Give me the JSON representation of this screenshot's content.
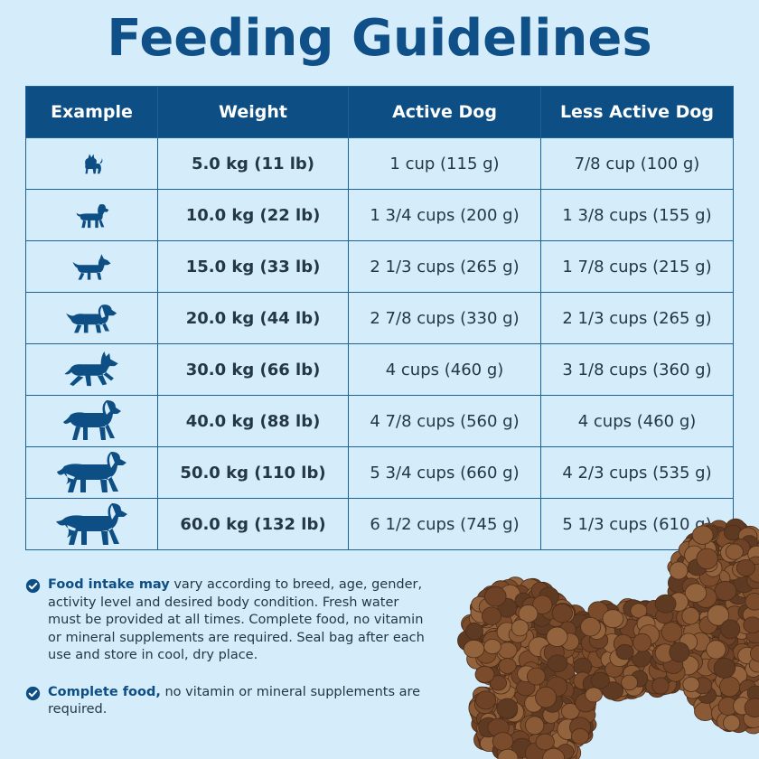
{
  "title": "Feeding Guidelines",
  "table": {
    "headers": [
      "Example",
      "Weight",
      "Active Dog",
      "Less Active Dog"
    ],
    "rows": [
      {
        "icon": "small-dog-icon",
        "weight": "5.0 kg (11 lb)",
        "active": "1 cup (115 g)",
        "less_active": "7/8 cup (100 g)"
      },
      {
        "icon": "poodle-dog-icon",
        "weight": "10.0 kg (22 lb)",
        "active": "1 3/4 cups (200 g)",
        "less_active": "1 3/8 cups (155 g)"
      },
      {
        "icon": "terrier-dog-icon",
        "weight": "15.0 kg (33 lb)",
        "active": "2 1/3 cups (265 g)",
        "less_active": "1 7/8 cups (215 g)"
      },
      {
        "icon": "spaniel-dog-icon",
        "weight": "20.0 kg (44 lb)",
        "active": "2 7/8 cups (330 g)",
        "less_active": "2 1/3 cups (265 g)"
      },
      {
        "icon": "shepherd-dog-icon",
        "weight": "30.0 kg (66 lb)",
        "active": "4 cups (460 g)",
        "less_active": "3 1/8 cups (360 g)"
      },
      {
        "icon": "retriever-dog-icon",
        "weight": "40.0 kg (88 lb)",
        "active": "4 7/8 cups (560 g)",
        "less_active": "4 cups (460 g)"
      },
      {
        "icon": "setter-dog-icon",
        "weight": "50.0 kg (110 lb)",
        "active": "5 3/4 cups (660 g)",
        "less_active": "4 2/3 cups (535 g)"
      },
      {
        "icon": "large-dog-icon",
        "weight": "60.0 kg (132 lb)",
        "active": "6 1/2 cups (745 g)",
        "less_active": "5 1/3 cups (610 g)"
      }
    ]
  },
  "notes": [
    {
      "bold": "Food intake may",
      "text": " vary according to breed, age, gender, activity level and desired body condition. Fresh water must be provided at all times. Complete food, no vitamin or mineral supplements are required. Seal bag after each use and store in cool, dry place."
    },
    {
      "bold": "Complete food,",
      "text": " no vitamin or mineral supplements are required."
    }
  ],
  "colors": {
    "brand": "#0d4e84",
    "background": "#d5ecfa",
    "kibble": "#8a5a36"
  },
  "decoration": "bone-shaped-kibble-pile"
}
